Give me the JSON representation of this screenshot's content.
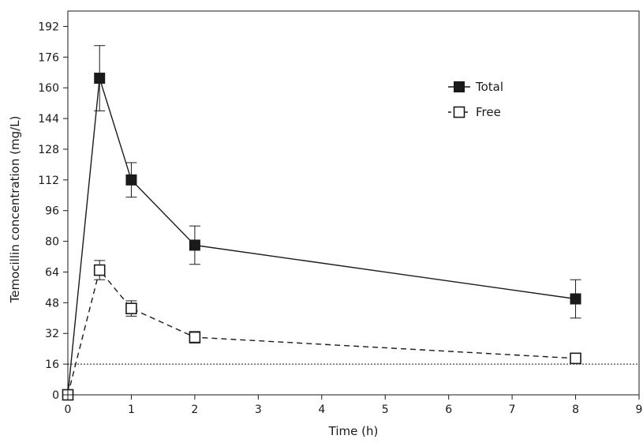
{
  "chart_data": {
    "type": "line",
    "title": "",
    "xlabel": "Time (h)",
    "ylabel": "Temocillin concentration (mg/L)",
    "xlim": [
      0,
      9
    ],
    "ylim": [
      0,
      200
    ],
    "x_ticks": [
      "0",
      "1",
      "2",
      "3",
      "4",
      "5",
      "6",
      "7",
      "8",
      "9"
    ],
    "y_ticks": [
      "0",
      "16",
      "32",
      "48",
      "64",
      "80",
      "96",
      "112",
      "128",
      "144",
      "160",
      "176",
      "192"
    ],
    "grid": false,
    "legend_position": "top-right",
    "threshold_line": {
      "y": 16,
      "style": "dotted"
    },
    "series": [
      {
        "name": "Total",
        "marker": "filled-square",
        "line_style": "solid",
        "color": "#1a1a1a",
        "x": [
          0,
          0.5,
          1,
          2,
          8
        ],
        "y": [
          0,
          165,
          112,
          78,
          50
        ],
        "error": [
          0,
          17,
          9,
          10,
          10
        ]
      },
      {
        "name": "Free",
        "marker": "open-square",
        "line_style": "dashed",
        "color": "#1a1a1a",
        "x": [
          0,
          0.5,
          1,
          2,
          8
        ],
        "y": [
          0,
          65,
          45,
          30,
          19
        ],
        "error": [
          0,
          5,
          4,
          3,
          2
        ]
      }
    ]
  }
}
